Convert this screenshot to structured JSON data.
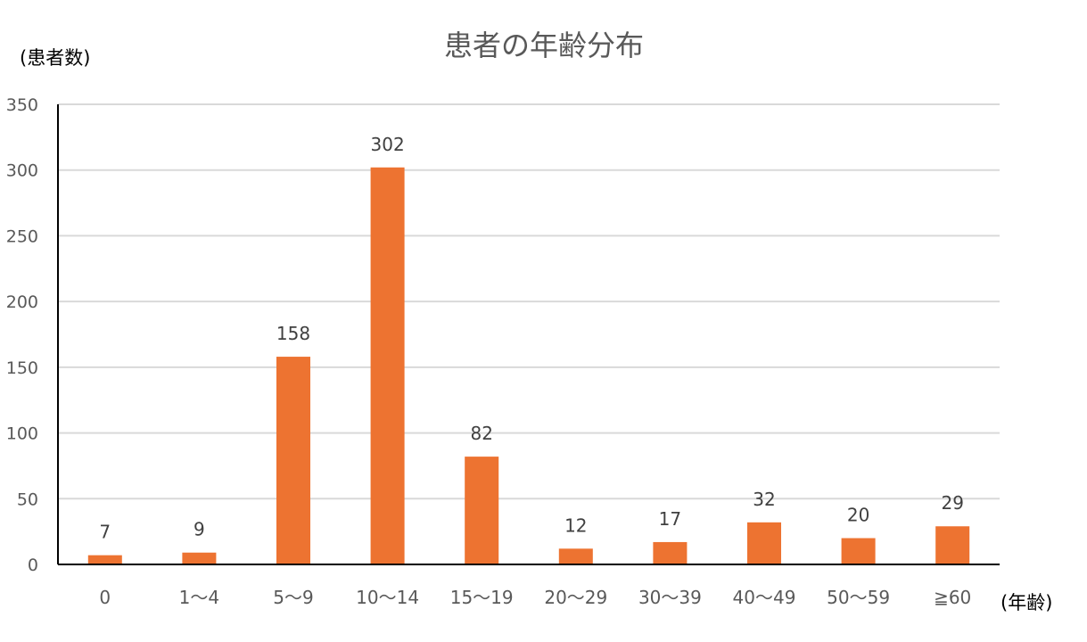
{
  "chart_data": {
    "type": "bar",
    "title": "患者の年齢分布",
    "ylabel": "(患者数)",
    "xlabel": "(年齢)",
    "categories": [
      "0",
      "1～4",
      "5～9",
      "10～14",
      "15～19",
      "20～29",
      "30～39",
      "40～49",
      "50～59",
      "≧60"
    ],
    "values": [
      7,
      9,
      158,
      302,
      82,
      12,
      17,
      32,
      20,
      29
    ],
    "ylim": [
      0,
      350
    ],
    "yticks": [
      "0",
      "50",
      "100",
      "150",
      "200",
      "250",
      "300",
      "350"
    ],
    "grid": true,
    "legend": "none",
    "colors": {
      "bar": "#ED7331",
      "grid": "#D9D9D9",
      "axis": "#000000"
    }
  }
}
